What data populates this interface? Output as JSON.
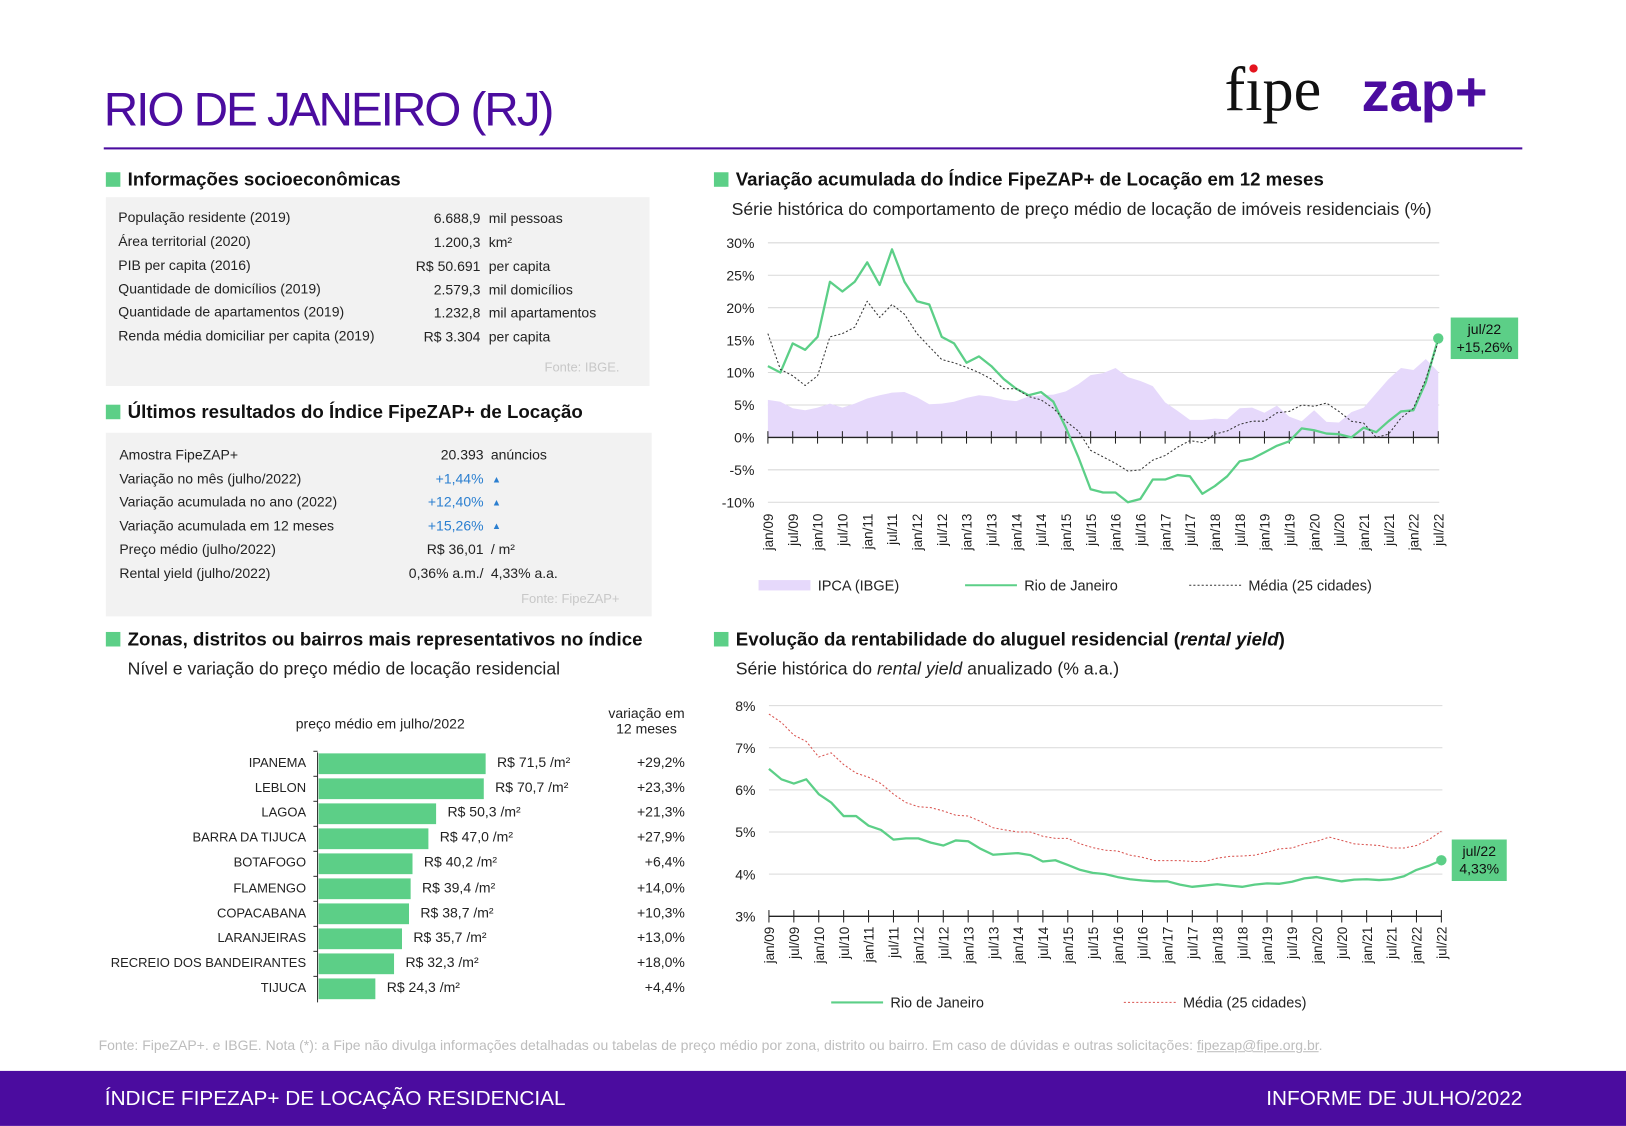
{
  "header": {
    "title": "RIO DE JANEIRO (RJ)",
    "logo_text": "fipe zap+"
  },
  "colors": {
    "purple": "#4b0c9f",
    "green": "#5ccf87",
    "ipca_fill": "#e6d9fb",
    "blue": "#2b7fd0",
    "red_dotted": "#d9534f"
  },
  "socio": {
    "heading": "Informações socioeconômicas",
    "rows": [
      {
        "label": "População residente (2019)",
        "value": "6.688,9",
        "unit": "mil pessoas"
      },
      {
        "label": "Área territorial (2020)",
        "value": "1.200,3",
        "unit": "km²"
      },
      {
        "label": "PIB per capita (2016)",
        "value": "R$ 50.691",
        "unit": "per capita"
      },
      {
        "label": "Quantidade de domicílios (2019)",
        "value": "2.579,3",
        "unit": "mil domicílios"
      },
      {
        "label": "Quantidade de apartamentos (2019)",
        "value": "1.232,8",
        "unit": "mil apartamentos"
      },
      {
        "label": "Renda média domiciliar per capita (2019)",
        "value": "R$ 3.304",
        "unit": "per capita"
      }
    ],
    "source": "Fonte: IBGE."
  },
  "results": {
    "heading": "Últimos resultados do Índice FipeZAP+ de Locação",
    "rows": [
      {
        "label": "Amostra FipeZAP+",
        "value": "20.393",
        "unit": "anúncios",
        "up": false
      },
      {
        "label": "Variação no mês (julho/2022)",
        "value": "+1,44%",
        "unit": "▲",
        "up": true
      },
      {
        "label": "Variação acumulada no ano (2022)",
        "value": "+12,40%",
        "unit": "▲",
        "up": true
      },
      {
        "label": "Variação acumulada em 12 meses",
        "value": "+15,26%",
        "unit": "▲",
        "up": true
      },
      {
        "label": "Preço médio (julho/2022)",
        "value": "R$ 36,01",
        "unit": "/ m²",
        "up": false
      },
      {
        "label": "Rental yield (julho/2022)",
        "value": "0,36% a.m./",
        "unit": "4,33% a.a.",
        "up": false
      }
    ],
    "source": "Fonte: FipeZAP+"
  },
  "zones": {
    "heading": "Zonas, distritos ou bairros mais representativos no índice",
    "subtitle": "Nível e variação do preço médio de locação residencial",
    "col_price": "preço médio em julho/2022",
    "col_var_1": "variação em",
    "col_var_2": "12 meses"
  },
  "rent_chart": {
    "heading": "Variação acumulada do Índice FipeZAP+ de Locação em 12 meses",
    "subtitle": "Série histórica do comportamento de preço médio de locação de imóveis residenciais (%)",
    "callout_date": "jul/22",
    "callout_value": "+15,26%"
  },
  "yield_chart": {
    "heading_pre": "Evolução da rentabilidade do aluguel residencial (",
    "heading_em": "rental yield",
    "heading_post": ")",
    "subtitle_pre": "Série histórica do ",
    "subtitle_em": "rental yield",
    "subtitle_post": " anualizado (% a.a.)",
    "callout_date": "jul/22",
    "callout_value": "4,33%"
  },
  "chart_data": [
    {
      "type": "bar",
      "orientation": "horizontal",
      "categories": [
        "IPANEMA",
        "LEBLON",
        "LAGOA",
        "BARRA DA TIJUCA",
        "BOTAFOGO",
        "FLAMENGO",
        "COPACABANA",
        "LARANJEIRAS",
        "RECREIO DOS BANDEIRANTES",
        "TIJUCA"
      ],
      "values": [
        71.5,
        70.7,
        50.3,
        47.0,
        40.2,
        39.4,
        38.7,
        35.7,
        32.3,
        24.3
      ],
      "value_labels": [
        "R$ 71,5 /m²",
        "R$ 70,7 /m²",
        "R$ 50,3 /m²",
        "R$ 47,0 /m²",
        "R$ 40,2 /m²",
        "R$ 39,4 /m²",
        "R$ 38,7 /m²",
        "R$ 35,7 /m²",
        "R$ 32,3 /m²",
        "R$ 24,3 /m²"
      ],
      "variation_12m": [
        "+29,2%",
        "+23,3%",
        "+21,3%",
        "+27,9%",
        "+6,4%",
        "+14,0%",
        "+10,3%",
        "+13,0%",
        "+18,0%",
        "+4,4%"
      ],
      "color": "#5ccf87"
    },
    {
      "type": "line",
      "ylim": [
        -10,
        30
      ],
      "yticks": [
        "-10%",
        "-5%",
        "0%",
        "5%",
        "10%",
        "15%",
        "20%",
        "25%",
        "30%"
      ],
      "ytick_values": [
        -10,
        -5,
        0,
        5,
        10,
        15,
        20,
        25,
        30
      ],
      "grid": true,
      "legend_placement": "bottom",
      "xtick_labels": [
        "jan/09",
        "jul/09",
        "jan/10",
        "jul/10",
        "jan/11",
        "jul/11",
        "jan/12",
        "jul/12",
        "jan/13",
        "jul/13",
        "jan/14",
        "jul/14",
        "jan/15",
        "jul/15",
        "jan/16",
        "jul/16",
        "jan/17",
        "jul/17",
        "jan/18",
        "jul/18",
        "jan/19",
        "jul/19",
        "jan/20",
        "jul/20",
        "jan/21",
        "jul/21",
        "jan/22",
        "jul/22"
      ],
      "x": [
        "jan/09",
        "abr/09",
        "jul/09",
        "out/09",
        "jan/10",
        "abr/10",
        "jul/10",
        "out/10",
        "jan/11",
        "abr/11",
        "jul/11",
        "out/11",
        "jan/12",
        "abr/12",
        "jul/12",
        "out/12",
        "jan/13",
        "abr/13",
        "jul/13",
        "out/13",
        "jan/14",
        "abr/14",
        "jul/14",
        "out/14",
        "jan/15",
        "abr/15",
        "jul/15",
        "out/15",
        "jan/16",
        "abr/16",
        "jul/16",
        "out/16",
        "jan/17",
        "abr/17",
        "jul/17",
        "out/17",
        "jan/18",
        "abr/18",
        "jul/18",
        "out/18",
        "jan/19",
        "abr/19",
        "jul/19",
        "out/19",
        "jan/20",
        "abr/20",
        "jul/20",
        "out/20",
        "jan/21",
        "abr/21",
        "jul/21",
        "out/21",
        "jan/22",
        "abr/22",
        "jul/22"
      ],
      "series": [
        {
          "name": "IPCA (IBGE)",
          "style": "area",
          "color": "#e6d9fb",
          "values": [
            5.8,
            5.5,
            4.5,
            4.2,
            4.6,
            5.2,
            4.6,
            5.2,
            6,
            6.5,
            6.9,
            7,
            6.2,
            5.1,
            5.2,
            5.5,
            6.1,
            6.5,
            6.3,
            5.8,
            5.6,
            6.3,
            6.5,
            6.6,
            7.1,
            8.2,
            9.6,
            9.9,
            10.7,
            9.3,
            8.7,
            7.9,
            5.4,
            4.1,
            2.7,
            2.7,
            2.9,
            2.8,
            4.5,
            4.6,
            3.8,
            4.9,
            3.2,
            2.5,
            4.2,
            2.4,
            2.3,
            3.9,
            4.6,
            6.8,
            9,
            10.7,
            10.4,
            12.1,
            10.1
          ]
        },
        {
          "name": "Rio de Janeiro",
          "style": "solid",
          "color": "#5ccf87",
          "values": [
            11,
            10,
            14.5,
            13.5,
            15.5,
            24,
            22.5,
            24,
            27,
            23.5,
            29,
            24,
            21,
            20.5,
            15.5,
            14.5,
            11.5,
            12.5,
            11,
            9,
            7.5,
            6.5,
            7,
            5.5,
            1.5,
            -3,
            -8,
            -8.5,
            -8.5,
            -10,
            -9.5,
            -6.5,
            -6.5,
            -5.8,
            -6,
            -8.7,
            -7.5,
            -6,
            -3.7,
            -3.3,
            -2.3,
            -1.3,
            -0.6,
            1.4,
            1.1,
            0.6,
            0.5,
            0,
            1.5,
            0.8,
            2.5,
            4,
            4.2,
            8.5,
            15.26
          ]
        },
        {
          "name": "Média (25 cidades)",
          "style": "dotted",
          "color": "#333333",
          "values": [
            16,
            10.5,
            9.5,
            8,
            9.5,
            15.5,
            16,
            17,
            21,
            18.5,
            20.5,
            19,
            16,
            14,
            12,
            11.5,
            10.8,
            10,
            9,
            7.5,
            7.5,
            6.3,
            5.8,
            4.5,
            2.5,
            1,
            -2,
            -3,
            -4,
            -5.2,
            -5,
            -3.5,
            -2.8,
            -1.5,
            -0.5,
            -0.8,
            0.5,
            1,
            2,
            2.5,
            2.5,
            3.8,
            4,
            5,
            4.8,
            5.3,
            4,
            2.5,
            2.2,
            0,
            0.5,
            3,
            4.5,
            9,
            14.8
          ]
        }
      ]
    },
    {
      "type": "line",
      "ylim": [
        3,
        8
      ],
      "yticks": [
        "3%",
        "4%",
        "5%",
        "6%",
        "7%",
        "8%"
      ],
      "ytick_values": [
        3,
        4,
        5,
        6,
        7,
        8
      ],
      "grid": true,
      "legend_placement": "bottom",
      "xtick_labels": [
        "jan/09",
        "jul/09",
        "jan/10",
        "jul/10",
        "jan/11",
        "jul/11",
        "jan/12",
        "jul/12",
        "jan/13",
        "jul/13",
        "jan/14",
        "jul/14",
        "jan/15",
        "jul/15",
        "jan/16",
        "jul/16",
        "jan/17",
        "jul/17",
        "jan/18",
        "jul/18",
        "jan/19",
        "jul/19",
        "jan/20",
        "jul/20",
        "jan/21",
        "jul/21",
        "jan/22",
        "jul/22"
      ],
      "x": [
        "jan/09",
        "abr/09",
        "jul/09",
        "out/09",
        "jan/10",
        "abr/10",
        "jul/10",
        "out/10",
        "jan/11",
        "abr/11",
        "jul/11",
        "out/11",
        "jan/12",
        "abr/12",
        "jul/12",
        "out/12",
        "jan/13",
        "abr/13",
        "jul/13",
        "out/13",
        "jan/14",
        "abr/14",
        "jul/14",
        "out/14",
        "jan/15",
        "abr/15",
        "jul/15",
        "out/15",
        "jan/16",
        "abr/16",
        "jul/16",
        "out/16",
        "jan/17",
        "abr/17",
        "jul/17",
        "out/17",
        "jan/18",
        "abr/18",
        "jul/18",
        "out/18",
        "jan/19",
        "abr/19",
        "jul/19",
        "out/19",
        "jan/20",
        "abr/20",
        "jul/20",
        "out/20",
        "jan/21",
        "abr/21",
        "jul/21",
        "out/21",
        "jan/22",
        "abr/22",
        "jul/22"
      ],
      "series": [
        {
          "name": "Rio de Janeiro",
          "style": "solid",
          "color": "#5ccf87",
          "values": [
            6.5,
            6.25,
            6.15,
            6.25,
            5.9,
            5.7,
            5.38,
            5.38,
            5.15,
            5.05,
            4.82,
            4.85,
            4.85,
            4.75,
            4.68,
            4.8,
            4.78,
            4.6,
            4.46,
            4.48,
            4.5,
            4.45,
            4.3,
            4.33,
            4.22,
            4.1,
            4.03,
            4.0,
            3.93,
            3.88,
            3.85,
            3.83,
            3.83,
            3.75,
            3.7,
            3.73,
            3.76,
            3.73,
            3.7,
            3.75,
            3.78,
            3.77,
            3.82,
            3.9,
            3.93,
            3.88,
            3.83,
            3.87,
            3.88,
            3.86,
            3.88,
            3.95,
            4.1,
            4.2,
            4.33
          ]
        },
        {
          "name": "Média (25 cidades)",
          "style": "dotted",
          "color": "#d9534f",
          "values": [
            7.8,
            7.6,
            7.3,
            7.15,
            6.78,
            6.88,
            6.6,
            6.4,
            6.3,
            6.15,
            5.9,
            5.7,
            5.6,
            5.58,
            5.5,
            5.4,
            5.38,
            5.25,
            5.1,
            5.05,
            5.0,
            5.0,
            4.9,
            4.85,
            4.85,
            4.72,
            4.63,
            4.57,
            4.55,
            4.45,
            4.4,
            4.32,
            4.32,
            4.32,
            4.3,
            4.3,
            4.38,
            4.42,
            4.43,
            4.45,
            4.52,
            4.6,
            4.62,
            4.72,
            4.78,
            4.88,
            4.8,
            4.72,
            4.7,
            4.68,
            4.62,
            4.62,
            4.68,
            4.82,
            5.02
          ]
        }
      ]
    }
  ],
  "footnote": {
    "text": "Fonte: FipeZAP+. e IBGE. Nota (*): a Fipe não divulga informações detalhadas ou tabelas de preço médio por zona, distrito ou bairro. Em caso de dúvidas e outras solicitações: ",
    "email": "fipezap@fipe.org.br",
    "end": "."
  },
  "footer": {
    "left": "ÍNDICE FIPEZAP+ DE LOCAÇÃO RESIDENCIAL",
    "right": "INFORME DE JULHO/2022"
  }
}
